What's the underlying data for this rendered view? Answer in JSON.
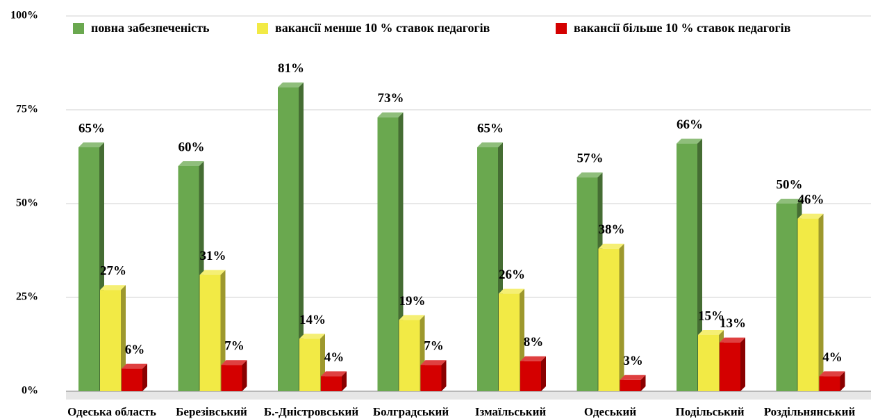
{
  "chart_data": {
    "type": "bar3d",
    "categories": [
      "Одеська область",
      "Березівський",
      "Б.-Дністровський",
      "Болградський",
      "Ізмаїльський",
      "Одеський",
      "Подільський",
      "Роздільнянський"
    ],
    "series": [
      {
        "name": "повна забезпеченість",
        "color": "#6aa84f",
        "values": [
          65,
          60,
          81,
          73,
          65,
          57,
          66,
          50
        ],
        "value_labels": [
          "65%",
          "60%",
          "81%",
          "73%",
          "65%",
          "57%",
          "66%",
          "50%"
        ]
      },
      {
        "name": "вакансії менше 10 % ставок педагогів",
        "color": "#f2ea45",
        "values": [
          27,
          31,
          14,
          19,
          26,
          38,
          15,
          46
        ],
        "value_labels": [
          "27%",
          "31%",
          "14%",
          "19%",
          "26%",
          "38%",
          "15%",
          "46%"
        ]
      },
      {
        "name": "вакансії більше 10 % ставок педагогів",
        "color": "#d40000",
        "values": [
          6,
          7,
          4,
          7,
          8,
          3,
          13,
          4
        ],
        "value_labels": [
          "6%",
          "7%",
          "4%",
          "7%",
          "8%",
          "3%",
          "13%",
          "4%"
        ]
      }
    ],
    "ylim": [
      0,
      100
    ],
    "yticks": [
      {
        "value": 0,
        "label": "0%"
      },
      {
        "value": 25,
        "label": "25%"
      },
      {
        "value": 50,
        "label": "50%"
      },
      {
        "value": 75,
        "label": "75%"
      },
      {
        "value": 100,
        "label": "100%"
      }
    ],
    "grid": true,
    "legend": "top"
  }
}
